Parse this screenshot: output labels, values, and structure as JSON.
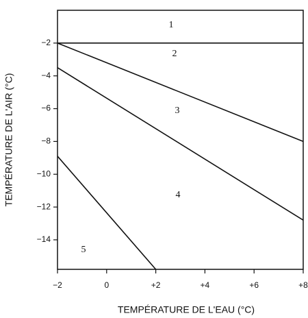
{
  "chart_data": {
    "type": "line",
    "xlabel": "TEMPÉRATURE DE L'EAU (°C)",
    "ylabel": "TEMPÉRATURE DE L'AIR (°C)",
    "xlim": [
      -2,
      8
    ],
    "ylim": [
      -15.8,
      0
    ],
    "xticks": [
      {
        "value": -2,
        "label": "−2"
      },
      0,
      {
        "value": 2,
        "label": "+2"
      },
      {
        "value": 4,
        "label": "+4"
      },
      {
        "value": 6,
        "label": "+6"
      },
      {
        "value": 8,
        "label": "+8"
      }
    ],
    "yticks": [
      {
        "value": -2,
        "label": "−2"
      },
      {
        "value": -4,
        "label": "−4"
      },
      {
        "value": -6,
        "label": "−6"
      },
      {
        "value": -8,
        "label": "−8"
      },
      {
        "value": -10,
        "label": "−10"
      },
      {
        "value": -12,
        "label": "−12"
      },
      {
        "value": -14,
        "label": "−14"
      }
    ],
    "grid": false,
    "series": [
      {
        "color": "#111111",
        "x": [
          -2,
          8
        ],
        "values": [
          -2,
          -2
        ]
      },
      {
        "color": "#111111",
        "x": [
          -2,
          8
        ],
        "values": [
          -2,
          -8
        ]
      },
      {
        "color": "#111111",
        "x": [
          -2,
          8
        ],
        "values": [
          -3.5,
          -12.8
        ]
      },
      {
        "color": "#111111",
        "x": [
          -2,
          2
        ],
        "values": [
          -8.9,
          -15.8
        ]
      }
    ],
    "annotations": [
      "1",
      "2",
      "3",
      "4",
      "5"
    ]
  }
}
